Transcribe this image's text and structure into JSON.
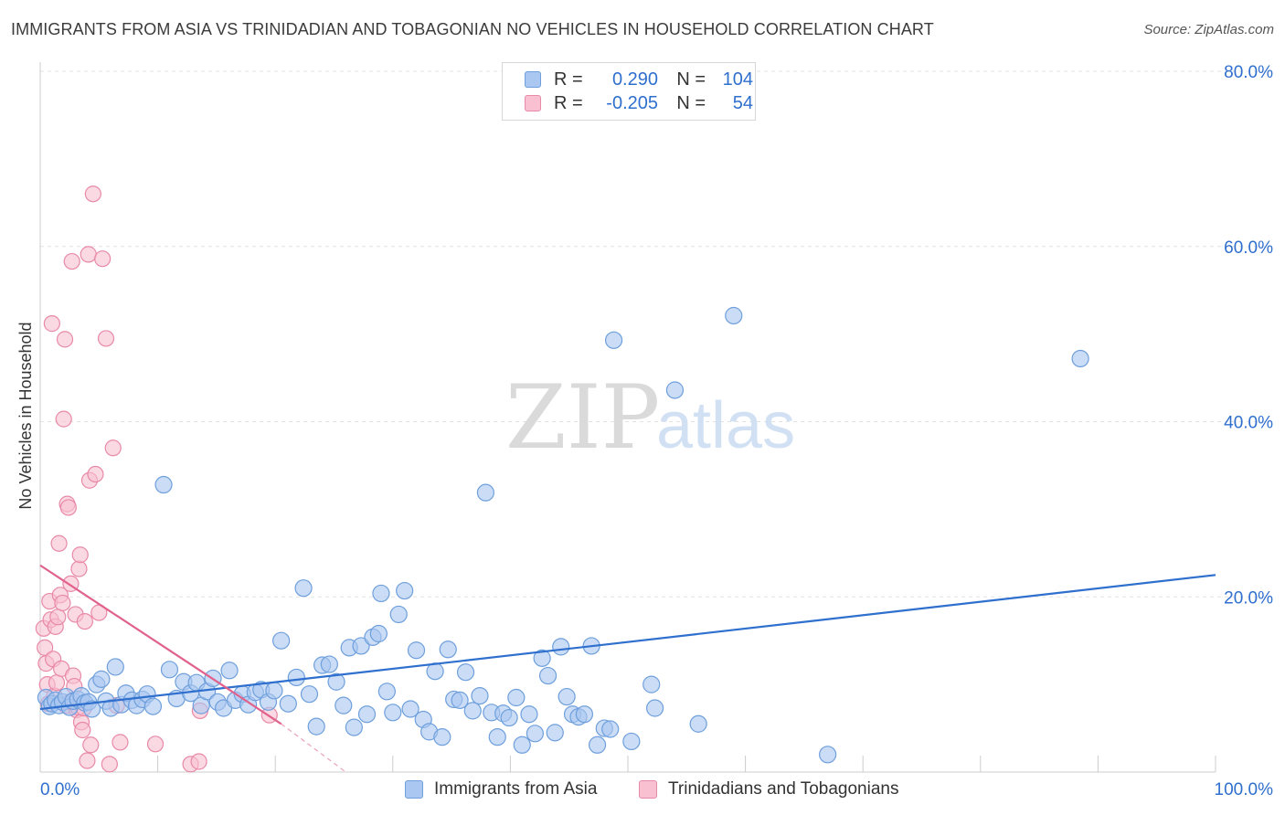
{
  "title": "IMMIGRANTS FROM ASIA VS TRINIDADIAN AND TOBAGONIAN NO VEHICLES IN HOUSEHOLD CORRELATION CHART",
  "source": "Source: ZipAtlas.com",
  "watermark": {
    "zip": "ZIP",
    "atlas": "atlas"
  },
  "legend": {
    "r_label": "R =",
    "n_label": "N =",
    "rows": [
      {
        "r": "0.290",
        "n": "104",
        "color": "#a9c7f0",
        "border": "#6e9fdc"
      },
      {
        "r": "-0.205",
        "n": "54",
        "color": "#f8c0d0",
        "border": "#e889a8"
      }
    ]
  },
  "colors": {
    "blue_fill": "#a9c7f0",
    "blue_stroke": "#6e9fdc",
    "blue_line": "#2f6fce",
    "pink_fill": "#f8c0d0",
    "pink_stroke": "#e889a8",
    "pink_line": "#e0628d",
    "tick_text": "#2f6fce",
    "grid": "#e3e3e3"
  },
  "chart_data": {
    "type": "scatter",
    "title": "IMMIGRANTS FROM ASIA VS TRINIDADIAN AND TOBAGONIAN NO VEHICLES IN HOUSEHOLD CORRELATION CHART",
    "xlabel": "",
    "ylabel": "No Vehicles in Household",
    "xlim": [
      0,
      100
    ],
    "ylim": [
      0,
      80
    ],
    "x_tick_labels": [
      "0.0%",
      "100.0%"
    ],
    "y_ticks": [
      20,
      40,
      60,
      80
    ],
    "y_tick_labels": [
      "20.0%",
      "40.0%",
      "60.0%",
      "80.0%"
    ],
    "series": [
      {
        "name": "Immigrants from Asia",
        "r": 0.29,
        "n": 104,
        "trend": {
          "x": [
            0,
            100
          ],
          "y": [
            7.2,
            22.5
          ],
          "dash_from": null
        },
        "points": [
          [
            0.5,
            8.5
          ],
          [
            0.8,
            7.5
          ],
          [
            1.0,
            7.8
          ],
          [
            1.3,
            8.2
          ],
          [
            1.6,
            7.6
          ],
          [
            1.9,
            8.0
          ],
          [
            2.2,
            8.6
          ],
          [
            2.5,
            7.4
          ],
          [
            2.8,
            8.1
          ],
          [
            3.2,
            8.3
          ],
          [
            3.5,
            8.7
          ],
          [
            3.8,
            7.9
          ],
          [
            4.1,
            8.0
          ],
          [
            4.4,
            7.2
          ],
          [
            4.8,
            10.0
          ],
          [
            5.2,
            10.6
          ],
          [
            5.6,
            8.1
          ],
          [
            6.0,
            7.3
          ],
          [
            6.4,
            12.0
          ],
          [
            6.9,
            7.7
          ],
          [
            7.3,
            9.0
          ],
          [
            7.8,
            8.2
          ],
          [
            8.2,
            7.6
          ],
          [
            8.7,
            8.3
          ],
          [
            9.1,
            8.9
          ],
          [
            9.6,
            7.5
          ],
          [
            10.5,
            32.8
          ],
          [
            11.0,
            11.7
          ],
          [
            11.6,
            8.4
          ],
          [
            12.2,
            10.3
          ],
          [
            12.8,
            9.0
          ],
          [
            13.3,
            10.2
          ],
          [
            13.7,
            7.6
          ],
          [
            14.2,
            9.2
          ],
          [
            14.7,
            10.7
          ],
          [
            15.1,
            8.0
          ],
          [
            15.6,
            7.3
          ],
          [
            16.1,
            11.6
          ],
          [
            16.6,
            8.2
          ],
          [
            17.2,
            8.9
          ],
          [
            17.7,
            7.7
          ],
          [
            18.3,
            9.1
          ],
          [
            18.8,
            9.4
          ],
          [
            19.4,
            8.0
          ],
          [
            19.9,
            9.3
          ],
          [
            20.5,
            15.0
          ],
          [
            21.1,
            7.8
          ],
          [
            21.8,
            10.8
          ],
          [
            22.4,
            21.0
          ],
          [
            22.9,
            8.9
          ],
          [
            23.5,
            5.2
          ],
          [
            24.0,
            12.2
          ],
          [
            24.6,
            12.3
          ],
          [
            25.2,
            10.3
          ],
          [
            25.8,
            7.6
          ],
          [
            26.3,
            14.2
          ],
          [
            26.7,
            5.1
          ],
          [
            27.3,
            14.4
          ],
          [
            27.8,
            6.6
          ],
          [
            28.3,
            15.4
          ],
          [
            28.8,
            15.8
          ],
          [
            29.0,
            20.4
          ],
          [
            29.5,
            9.2
          ],
          [
            30.0,
            6.8
          ],
          [
            30.5,
            18.0
          ],
          [
            31.0,
            20.7
          ],
          [
            31.5,
            7.2
          ],
          [
            32.0,
            13.9
          ],
          [
            32.6,
            6.0
          ],
          [
            33.1,
            4.6
          ],
          [
            33.6,
            11.5
          ],
          [
            34.2,
            4.0
          ],
          [
            34.7,
            14.0
          ],
          [
            35.2,
            8.3
          ],
          [
            35.7,
            8.2
          ],
          [
            36.2,
            11.4
          ],
          [
            36.8,
            7.0
          ],
          [
            37.4,
            8.7
          ],
          [
            37.9,
            31.9
          ],
          [
            38.4,
            6.8
          ],
          [
            38.9,
            4.0
          ],
          [
            39.4,
            6.7
          ],
          [
            39.9,
            6.2
          ],
          [
            40.5,
            8.5
          ],
          [
            41.0,
            3.1
          ],
          [
            41.6,
            6.6
          ],
          [
            42.1,
            4.4
          ],
          [
            42.7,
            13.0
          ],
          [
            43.2,
            11.0
          ],
          [
            43.8,
            4.5
          ],
          [
            44.3,
            14.3
          ],
          [
            44.8,
            8.6
          ],
          [
            45.3,
            6.6
          ],
          [
            45.8,
            6.3
          ],
          [
            46.3,
            6.6
          ],
          [
            46.9,
            14.4
          ],
          [
            47.4,
            3.1
          ],
          [
            48.0,
            5.0
          ],
          [
            48.5,
            4.9
          ],
          [
            48.8,
            49.3
          ],
          [
            50.3,
            3.5
          ],
          [
            52.0,
            10.0
          ],
          [
            52.3,
            7.3
          ],
          [
            54.0,
            43.6
          ],
          [
            56.0,
            5.5
          ],
          [
            59.0,
            52.1
          ],
          [
            67.0,
            2.0
          ],
          [
            88.5,
            47.2
          ]
        ]
      },
      {
        "name": "Trinidadians and Tobagonians",
        "r": -0.205,
        "n": 54,
        "trend": {
          "x": [
            0,
            20.5
          ],
          "y": [
            23.6,
            5.5
          ],
          "dash_to": [
            26,
            0
          ]
        },
        "points": [
          [
            0.3,
            16.4
          ],
          [
            0.4,
            14.2
          ],
          [
            0.5,
            12.4
          ],
          [
            0.6,
            10.0
          ],
          [
            0.7,
            7.8
          ],
          [
            0.8,
            19.5
          ],
          [
            0.9,
            17.4
          ],
          [
            1.0,
            51.2
          ],
          [
            1.1,
            12.9
          ],
          [
            1.2,
            8.7
          ],
          [
            1.3,
            16.6
          ],
          [
            1.4,
            10.2
          ],
          [
            1.5,
            17.7
          ],
          [
            1.6,
            26.1
          ],
          [
            1.7,
            20.2
          ],
          [
            1.8,
            11.8
          ],
          [
            1.9,
            19.3
          ],
          [
            2.0,
            40.3
          ],
          [
            2.1,
            49.4
          ],
          [
            2.2,
            7.6
          ],
          [
            2.3,
            30.6
          ],
          [
            2.4,
            30.2
          ],
          [
            2.5,
            8.0
          ],
          [
            2.6,
            21.5
          ],
          [
            2.7,
            58.3
          ],
          [
            2.8,
            11.0
          ],
          [
            2.9,
            9.8
          ],
          [
            3.0,
            18.0
          ],
          [
            3.1,
            7.1
          ],
          [
            3.2,
            7.4
          ],
          [
            3.3,
            23.2
          ],
          [
            3.4,
            24.8
          ],
          [
            3.5,
            5.7
          ],
          [
            3.6,
            4.8
          ],
          [
            3.7,
            7.3
          ],
          [
            3.8,
            17.2
          ],
          [
            4.0,
            1.3
          ],
          [
            4.1,
            59.1
          ],
          [
            4.2,
            33.3
          ],
          [
            4.3,
            3.1
          ],
          [
            4.5,
            66.0
          ],
          [
            4.7,
            34.0
          ],
          [
            5.0,
            18.2
          ],
          [
            5.3,
            58.6
          ],
          [
            5.6,
            49.5
          ],
          [
            5.9,
            0.9
          ],
          [
            6.2,
            37.0
          ],
          [
            6.5,
            7.6
          ],
          [
            6.8,
            3.4
          ],
          [
            9.8,
            3.2
          ],
          [
            12.8,
            0.9
          ],
          [
            13.5,
            1.2
          ],
          [
            13.6,
            7.0
          ],
          [
            19.5,
            6.5
          ]
        ]
      }
    ]
  }
}
